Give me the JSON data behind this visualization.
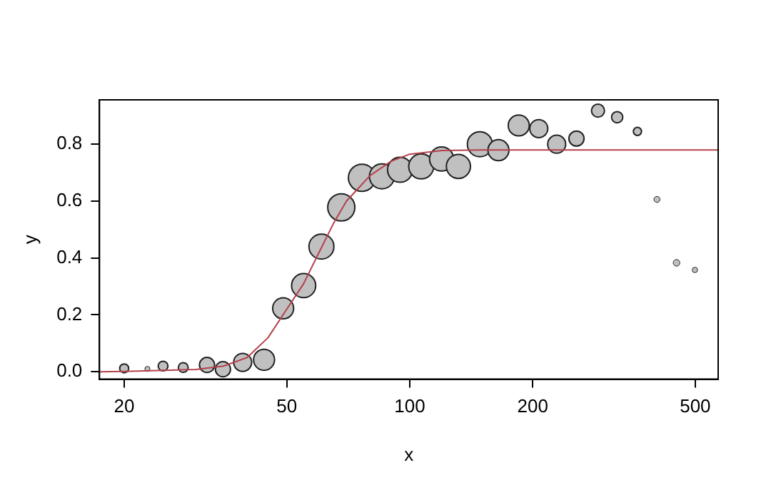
{
  "chart_data": {
    "type": "bubble",
    "xlabel": "x",
    "ylabel": "y",
    "log": "x",
    "grid": false,
    "xlim": [
      17.4,
      569
    ],
    "ylim": [
      -0.026,
      0.956
    ],
    "xticks": [
      20,
      50,
      100,
      200,
      500
    ],
    "yticks": [
      {
        "value": 0,
        "label": "0.0"
      },
      {
        "value": 0.2,
        "label": "0.2"
      },
      {
        "value": 0.4,
        "label": "0.4"
      },
      {
        "value": 0.6,
        "label": "0.6"
      },
      {
        "value": 0.8,
        "label": "0.8"
      }
    ],
    "series": [
      {
        "color": "#c0c0c0",
        "x": [
          20,
          22.8,
          24.9,
          27.9,
          31.9,
          34.9,
          39,
          44,
          49,
          55,
          60.8,
          68,
          76.4,
          85.5,
          94.7,
          106.7,
          119.7,
          131.6,
          148.5,
          164.9,
          184.9,
          207,
          229,
          256,
          289,
          322,
          361,
          403,
          450,
          499
        ],
        "values": [
          0.012,
          0.01,
          0.02,
          0.015,
          0.024,
          0.009,
          0.033,
          0.042,
          0.223,
          0.303,
          0.44,
          0.578,
          0.682,
          0.687,
          0.71,
          0.722,
          0.748,
          0.722,
          0.8,
          0.779,
          0.866,
          0.855,
          0.8,
          0.82,
          0.918,
          0.895,
          0.845,
          0.606,
          0.383,
          0.358
        ],
        "sizes": [
          0.11,
          0.036,
          0.13,
          0.13,
          0.31,
          0.31,
          0.44,
          0.6,
          0.6,
          0.79,
          0.85,
          1,
          1,
          0.85,
          0.85,
          0.85,
          0.79,
          0.79,
          0.85,
          0.6,
          0.6,
          0.44,
          0.44,
          0.31,
          0.23,
          0.17,
          0.09,
          0.05,
          0.06,
          0.04
        ]
      },
      {
        "type": "line",
        "color": "#b5404a",
        "x": [
          17.4,
          20,
          30,
          35,
          40,
          45,
          50,
          55,
          60,
          65,
          70,
          80,
          90,
          100,
          120,
          150,
          569
        ],
        "values": [
          0,
          0.001,
          0.008,
          0.02,
          0.05,
          0.12,
          0.22,
          0.31,
          0.42,
          0.52,
          0.6,
          0.69,
          0.74,
          0.765,
          0.778,
          0.78,
          0.78
        ]
      }
    ]
  }
}
